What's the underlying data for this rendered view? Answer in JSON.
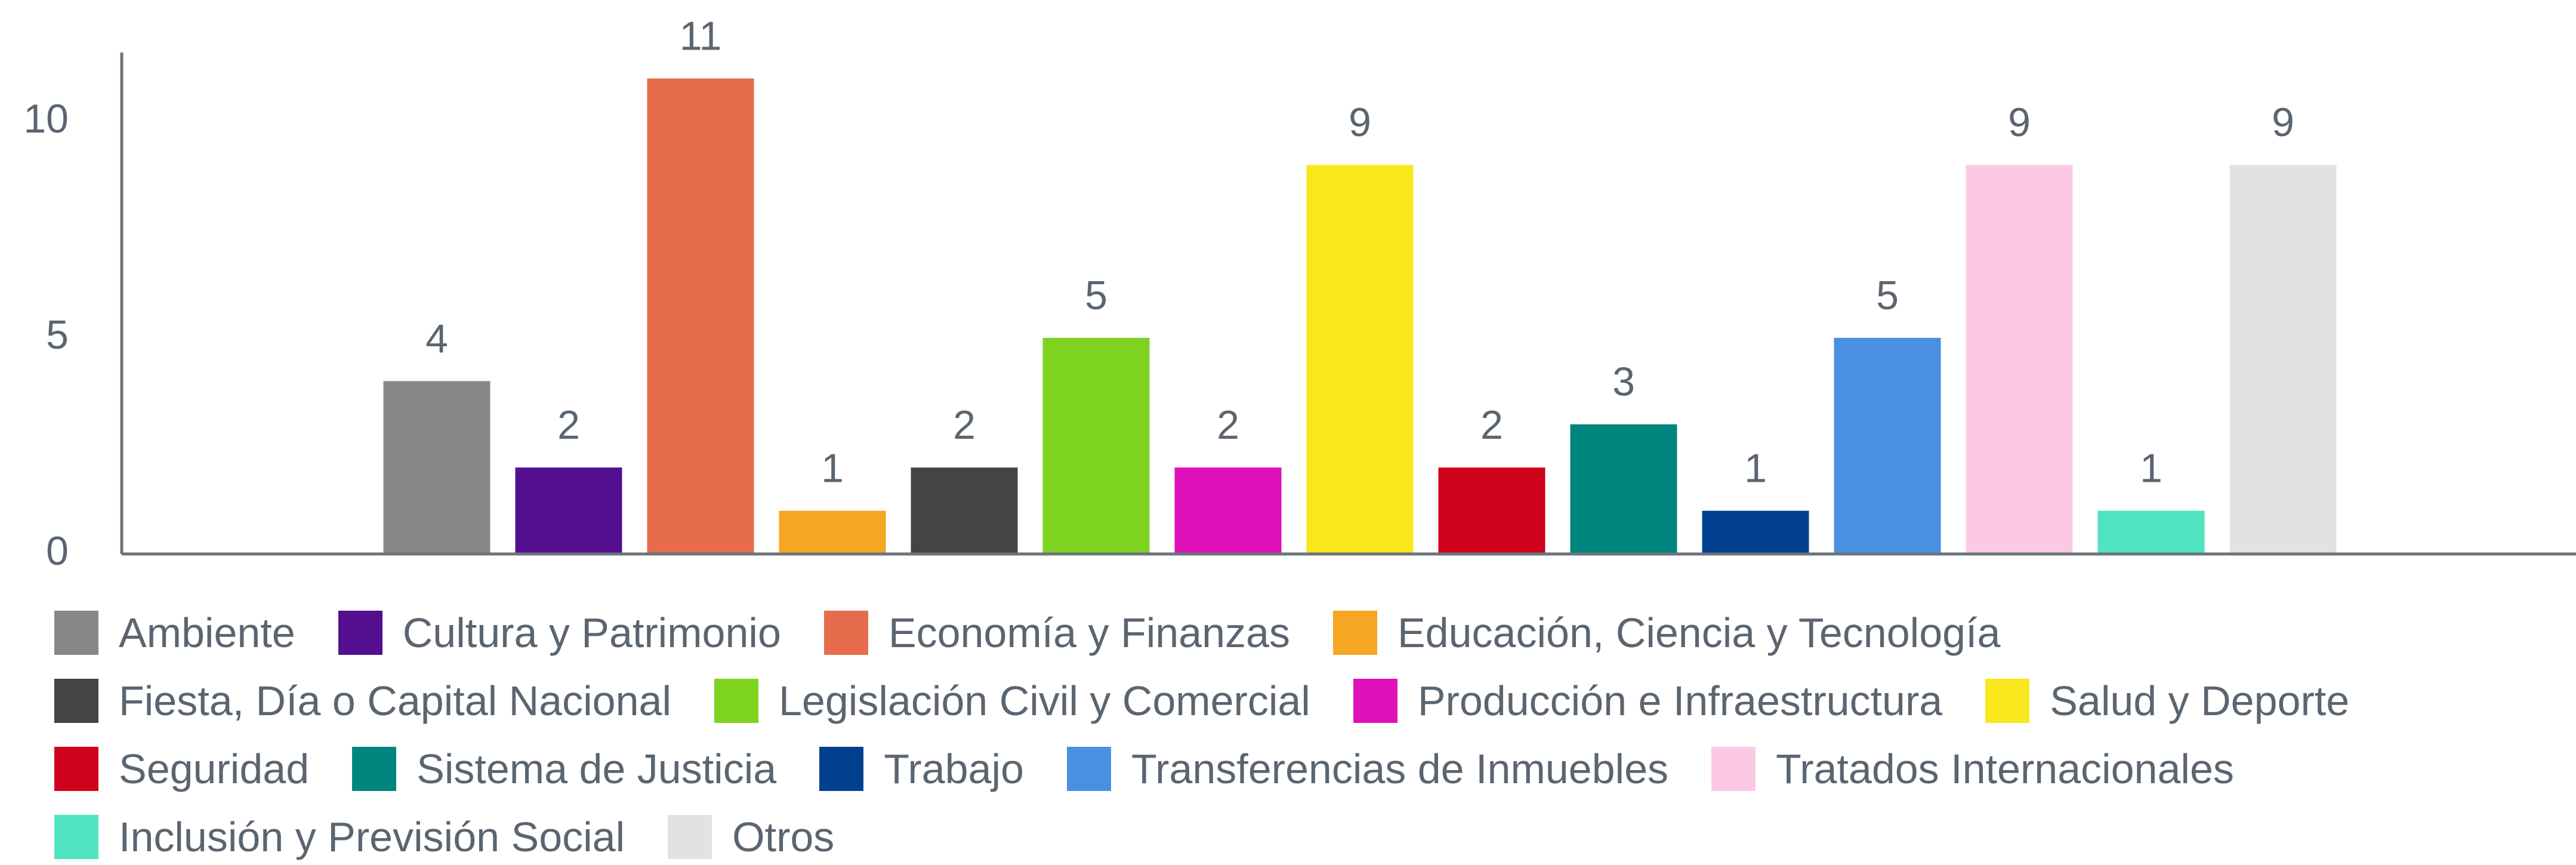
{
  "chart_data": {
    "type": "bar",
    "categories": [
      "Ambiente",
      "Cultura y Patrimonio",
      "Economía y Finanzas",
      "Educación, Ciencia y Tecnología",
      "Fiesta, Día o Capital Nacional",
      "Legislación Civil y Comercial",
      "Producción e Infraestructura",
      "Salud y Deporte",
      "Seguridad",
      "Sistema de Justicia",
      "Trabajo",
      "Transferencias de Inmuebles",
      "Tratados Internacionales",
      "Inclusión y Previsión Social",
      "Otros"
    ],
    "values": [
      4,
      2,
      11,
      1,
      2,
      5,
      2,
      9,
      2,
      3,
      1,
      5,
      9,
      1,
      9
    ],
    "colors": [
      "#878787",
      "#530f8f",
      "#e66c4d",
      "#f5a623",
      "#444444",
      "#7ed321",
      "#e011b9",
      "#f8e71c",
      "#d0021b",
      "#00867f",
      "#00408f",
      "#4a90e2",
      "#fcc9e4",
      "#50e3c2",
      "#e2e2e2"
    ],
    "ylim": [
      0,
      11.6
    ],
    "yticks": [
      0,
      5,
      10
    ],
    "grid": false,
    "legend": "bottom"
  }
}
